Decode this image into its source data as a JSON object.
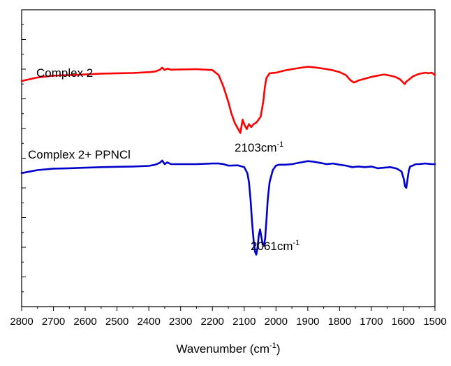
{
  "chart_data": {
    "type": "line",
    "xlabel": "Wavenumber (cm",
    "xlabel_sup": "-1",
    "xlabel_tail": ")",
    "ylabel": "",
    "xlim": [
      2800,
      1500
    ],
    "x_reversed": true,
    "ylim": [
      0,
      10
    ],
    "y_ticks_labeled": false,
    "grid": false,
    "x_ticks": [
      2800,
      2700,
      2600,
      2500,
      2400,
      2300,
      2200,
      2100,
      2000,
      1900,
      1800,
      1700,
      1600,
      1500
    ],
    "x_tick_labels": [
      "2800",
      "2700",
      "2600",
      "2500",
      "2400",
      "2300",
      "2200",
      "2100",
      "2000",
      "1900",
      "1800",
      "1700",
      "1600",
      "1500"
    ],
    "series": [
      {
        "name": "Complex 2",
        "color": "#ff0000",
        "x": [
          2800,
          2750,
          2700,
          2650,
          2600,
          2550,
          2500,
          2450,
          2400,
          2380,
          2365,
          2358,
          2350,
          2342,
          2330,
          2300,
          2250,
          2200,
          2180,
          2165,
          2150,
          2140,
          2130,
          2120,
          2112,
          2105,
          2098,
          2092,
          2085,
          2078,
          2070,
          2062,
          2055,
          2048,
          2040,
          2035,
          2030,
          2020,
          2000,
          1975,
          1950,
          1920,
          1900,
          1880,
          1860,
          1840,
          1820,
          1800,
          1780,
          1765,
          1755,
          1748,
          1740,
          1720,
          1700,
          1690,
          1680,
          1670,
          1660,
          1650,
          1640,
          1625,
          1610,
          1600,
          1595,
          1590,
          1580,
          1570,
          1560,
          1550,
          1540,
          1530,
          1520,
          1510,
          1500
        ],
        "y": [
          7.6,
          7.72,
          7.78,
          7.8,
          7.82,
          7.85,
          7.86,
          7.87,
          7.9,
          7.92,
          7.98,
          8.05,
          7.97,
          8.02,
          7.98,
          7.99,
          8.0,
          7.97,
          7.8,
          7.4,
          6.9,
          6.5,
          6.2,
          6.0,
          5.85,
          6.3,
          6.1,
          5.98,
          6.15,
          6.05,
          6.15,
          6.2,
          6.3,
          6.4,
          6.9,
          7.4,
          7.7,
          7.86,
          7.88,
          7.95,
          8.0,
          8.05,
          8.08,
          8.06,
          8.03,
          8.0,
          7.96,
          7.9,
          7.8,
          7.62,
          7.55,
          7.58,
          7.62,
          7.68,
          7.74,
          7.76,
          7.78,
          7.8,
          7.82,
          7.8,
          7.78,
          7.74,
          7.66,
          7.55,
          7.5,
          7.58,
          7.66,
          7.75,
          7.8,
          7.84,
          7.86,
          7.88,
          7.86,
          7.88,
          7.8
        ]
      },
      {
        "name": "Complex 2+ PPNCl",
        "color": "#0000cc",
        "x": [
          2800,
          2750,
          2700,
          2650,
          2600,
          2550,
          2500,
          2450,
          2400,
          2380,
          2365,
          2358,
          2350,
          2342,
          2330,
          2300,
          2250,
          2200,
          2180,
          2165,
          2150,
          2140,
          2120,
          2100,
          2090,
          2085,
          2080,
          2075,
          2070,
          2066,
          2062,
          2058,
          2054,
          2050,
          2046,
          2042,
          2038,
          2034,
          2030,
          2026,
          2020,
          2010,
          2000,
          1990,
          1970,
          1950,
          1920,
          1900,
          1880,
          1860,
          1840,
          1820,
          1800,
          1780,
          1760,
          1740,
          1720,
          1700,
          1680,
          1660,
          1640,
          1620,
          1605,
          1598,
          1594,
          1590,
          1586,
          1582,
          1578,
          1570,
          1560,
          1550,
          1530,
          1510,
          1500
        ],
        "y": [
          4.5,
          4.6,
          4.65,
          4.66,
          4.68,
          4.7,
          4.71,
          4.72,
          4.74,
          4.78,
          4.85,
          4.92,
          4.8,
          4.86,
          4.8,
          4.8,
          4.8,
          4.82,
          4.82,
          4.8,
          4.75,
          4.75,
          4.76,
          4.7,
          4.5,
          4.2,
          3.6,
          2.8,
          2.2,
          1.85,
          1.75,
          2.0,
          2.4,
          2.6,
          2.35,
          2.1,
          2.05,
          2.3,
          2.9,
          3.6,
          4.2,
          4.6,
          4.75,
          4.78,
          4.78,
          4.8,
          4.86,
          4.9,
          4.88,
          4.84,
          4.8,
          4.82,
          4.78,
          4.75,
          4.7,
          4.72,
          4.7,
          4.72,
          4.66,
          4.68,
          4.7,
          4.65,
          4.55,
          4.3,
          4.05,
          4.0,
          4.3,
          4.6,
          4.72,
          4.75,
          4.8,
          4.8,
          4.82,
          4.8,
          4.8
        ]
      }
    ],
    "annotations": [
      {
        "id": "label-complex2",
        "text": "Complex 2"
      },
      {
        "id": "label-complex2-ppncl",
        "text": "Complex 2+ PPNCl"
      },
      {
        "id": "peak-2103",
        "text": "2103cm",
        "sup": "-1"
      },
      {
        "id": "peak-2061",
        "text": "2061cm",
        "sup": "-1"
      }
    ]
  }
}
